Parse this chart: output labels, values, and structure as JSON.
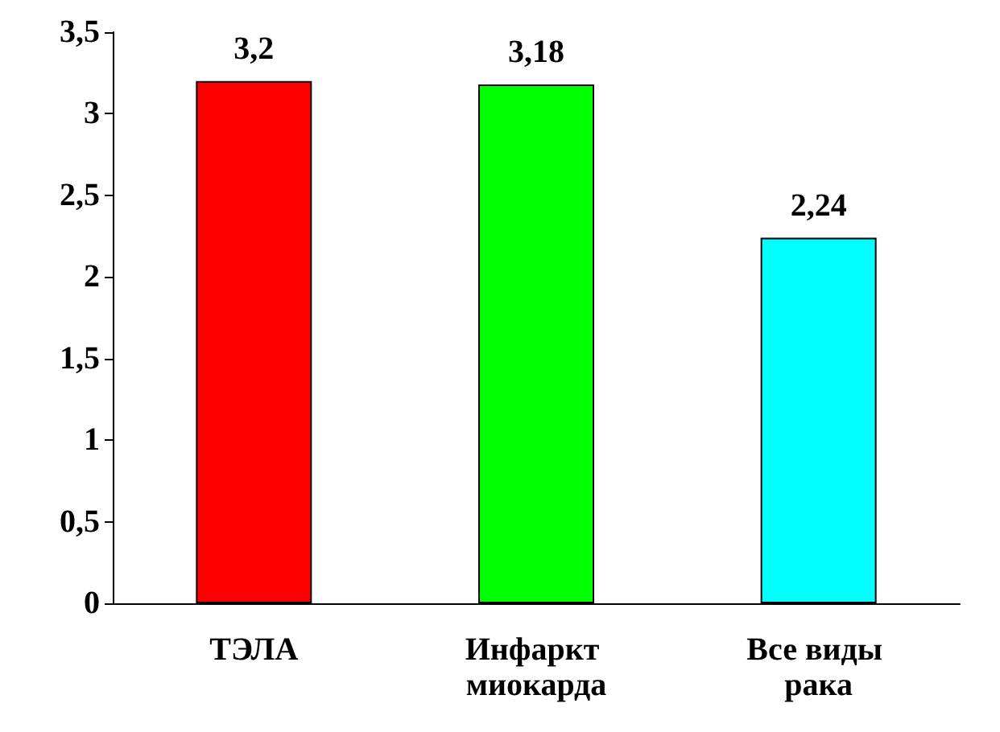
{
  "chart_data": {
    "type": "bar",
    "categories": [
      "ТЭЛА",
      "Инфаркт миокарда",
      "Все виды рака"
    ],
    "values": [
      3.2,
      3.18,
      2.24
    ],
    "colors": [
      "#ff0000",
      "#00ff00",
      "#00ffff"
    ],
    "value_labels": [
      "3,2",
      "3,18",
      "2,24"
    ],
    "ylim": [
      0,
      3.5
    ],
    "yticks": [
      0,
      {
        "value": 0.5,
        "label": "0,5"
      },
      1,
      {
        "value": 1.5,
        "label": "1,5"
      },
      2,
      {
        "value": 2.5,
        "label": "2,5"
      },
      3,
      {
        "value": 3.5,
        "label": "3,5"
      }
    ],
    "grid": false
  }
}
